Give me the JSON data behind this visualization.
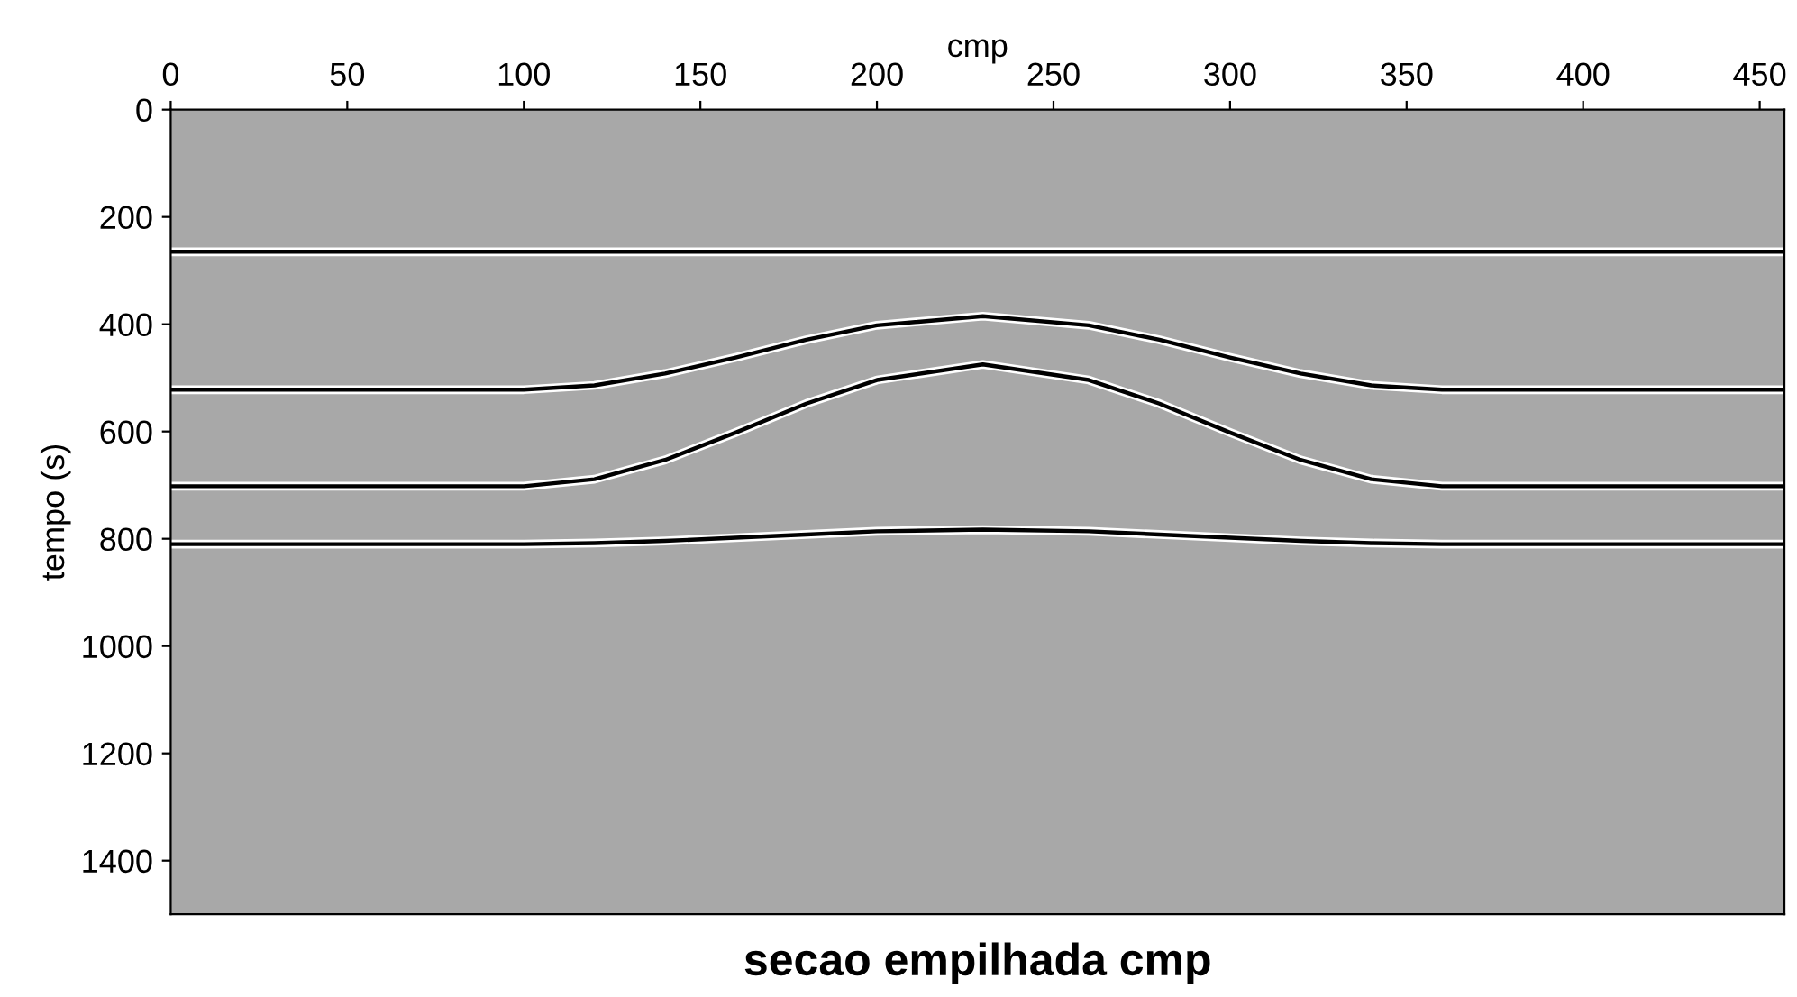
{
  "chart_data": {
    "type": "line",
    "title": "secao empilhada cmp",
    "xlabel": "cmp",
    "ylabel": "tempo (s)",
    "x": [
      0,
      50,
      100,
      120,
      140,
      160,
      180,
      200,
      230,
      260,
      280,
      300,
      320,
      340,
      360,
      400,
      457
    ],
    "series": [
      {
        "color": "#000000",
        "values": [
          265,
          265,
          265,
          265,
          265,
          265,
          265,
          265,
          265,
          265,
          265,
          265,
          265,
          265,
          265,
          265,
          265
        ]
      },
      {
        "color": "#000000",
        "values": [
          522,
          522,
          522,
          514,
          492,
          462,
          429,
          402,
          385,
          402,
          429,
          462,
          492,
          514,
          522,
          522,
          522
        ]
      },
      {
        "color": "#000000",
        "values": [
          702,
          702,
          702,
          689,
          653,
          602,
          548,
          504,
          475,
          504,
          548,
          602,
          653,
          689,
          702,
          702,
          702
        ]
      },
      {
        "color": "#000000",
        "values": [
          810,
          810,
          810,
          808,
          804,
          798,
          792,
          786,
          783,
          786,
          792,
          798,
          804,
          808,
          810,
          810,
          810
        ]
      }
    ],
    "xlim": [
      0,
      457
    ],
    "xticks": [
      0,
      50,
      100,
      150,
      200,
      250,
      300,
      350,
      400,
      450
    ],
    "ylim": [
      1500,
      0
    ],
    "yticks": [
      0,
      200,
      400,
      600,
      800,
      1000,
      1200,
      1400
    ],
    "grid": false,
    "legend": false,
    "marker": "none",
    "line_style": "solid"
  }
}
